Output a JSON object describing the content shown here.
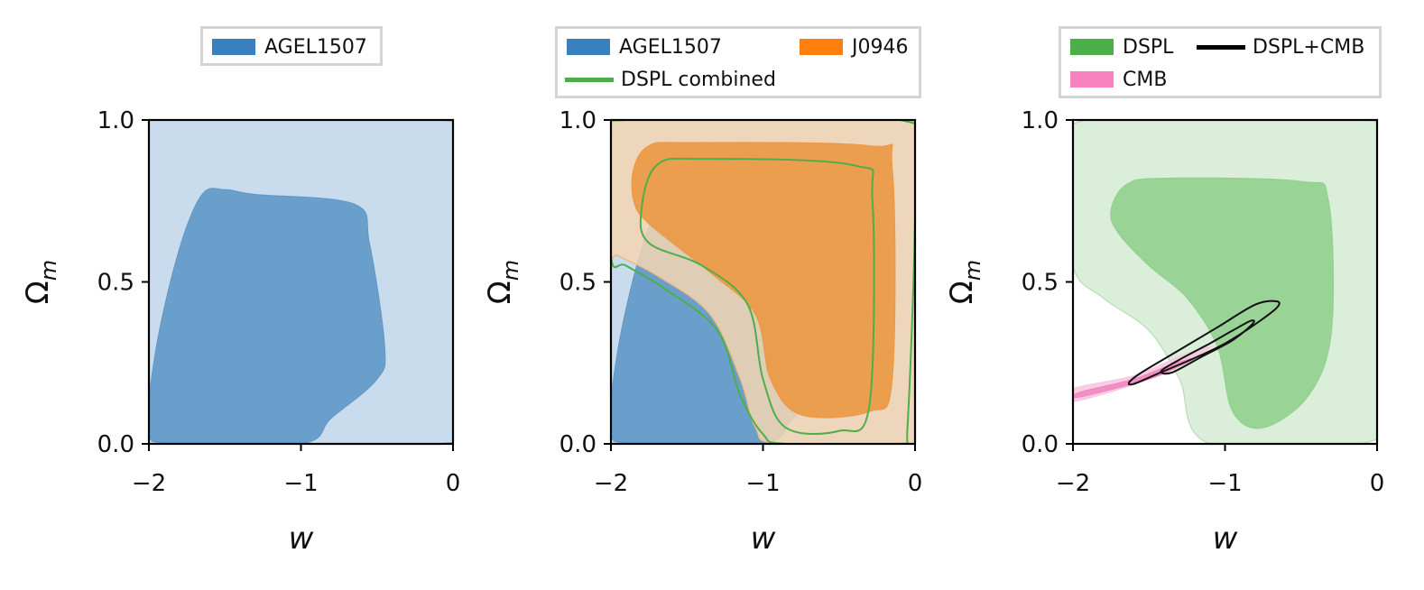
{
  "chart_data": [
    {
      "type": "contour",
      "title": "",
      "xlabel": "w",
      "ylabel": "Ω_m",
      "xlim": [
        -2,
        0
      ],
      "ylim": [
        0.0,
        1.0
      ],
      "x_ticks": [
        "−2",
        "−1",
        "0"
      ],
      "y_ticks": [
        "0.0",
        "0.5",
        "1.0"
      ],
      "legend": {
        "placement": "top-center",
        "entries": [
          {
            "label": "AGEL1507",
            "color": "#3a7fbe",
            "kind": "patch"
          }
        ]
      },
      "series": [
        {
          "name": "AGEL1507",
          "color": "#3a7fbe",
          "contours": [
            {
              "level": "outer",
              "fill": "#c0d6ea",
              "stroke": "#9dbcdc",
              "points": [
                [
                  -2.0,
                  0.05
                ],
                [
                  -2.0,
                  0.95
                ],
                [
                  -1.9,
                  1.0
                ],
                [
                  -0.1,
                  1.0
                ],
                [
                  0.0,
                  0.9
                ],
                [
                  0.0,
                  0.12
                ],
                [
                  -0.1,
                  0.0
                ],
                [
                  -1.85,
                  0.0
                ]
              ]
            },
            {
              "level": "inner",
              "fill": "#6299c8",
              "stroke": "#6299c8",
              "points": [
                [
                  -2.0,
                  0.05
                ],
                [
                  -1.95,
                  0.3
                ],
                [
                  -1.8,
                  0.6
                ],
                [
                  -1.65,
                  0.77
                ],
                [
                  -1.5,
                  0.785
                ],
                [
                  -1.3,
                  0.77
                ],
                [
                  -0.65,
                  0.74
                ],
                [
                  -0.55,
                  0.62
                ],
                [
                  -0.45,
                  0.3
                ],
                [
                  -0.5,
                  0.2
                ],
                [
                  -0.8,
                  0.08
                ],
                [
                  -1.0,
                  0.0
                ],
                [
                  -1.85,
                  0.0
                ]
              ]
            }
          ]
        }
      ]
    },
    {
      "type": "contour",
      "title": "",
      "xlabel": "w",
      "ylabel": "Ω_m",
      "xlim": [
        -2,
        0
      ],
      "ylim": [
        0.0,
        1.0
      ],
      "x_ticks": [
        "−2",
        "−1",
        "0"
      ],
      "y_ticks": [
        "0.0",
        "0.5",
        "1.0"
      ],
      "legend": {
        "placement": "top-center",
        "entries": [
          {
            "label": "AGEL1507",
            "color": "#3a7fbe",
            "kind": "patch"
          },
          {
            "label": "J0946",
            "color": "#ff7f0e",
            "kind": "patch"
          },
          {
            "label": "DSPL combined",
            "color": "#4daf4a",
            "kind": "line"
          }
        ]
      },
      "series": [
        {
          "name": "AGEL1507",
          "color": "#3a7fbe",
          "contours": [
            {
              "level": "outer",
              "fill": "#c0d6ea",
              "stroke": "#9dbcdc",
              "points": [
                [
                  -2.0,
                  0.05
                ],
                [
                  -2.0,
                  0.95
                ],
                [
                  -1.9,
                  1.0
                ],
                [
                  -0.1,
                  1.0
                ],
                [
                  0.0,
                  0.9
                ],
                [
                  0.0,
                  0.12
                ],
                [
                  -0.1,
                  0.0
                ],
                [
                  -1.85,
                  0.0
                ]
              ]
            },
            {
              "level": "inner",
              "fill": "#6299c8",
              "stroke": "#6299c8",
              "points": [
                [
                  -2.0,
                  0.05
                ],
                [
                  -1.95,
                  0.3
                ],
                [
                  -1.8,
                  0.6
                ],
                [
                  -1.65,
                  0.77
                ],
                [
                  -1.5,
                  0.785
                ],
                [
                  -1.3,
                  0.77
                ],
                [
                  -0.65,
                  0.74
                ],
                [
                  -0.55,
                  0.62
                ],
                [
                  -0.45,
                  0.3
                ],
                [
                  -0.5,
                  0.2
                ],
                [
                  -0.8,
                  0.08
                ],
                [
                  -1.0,
                  0.0
                ],
                [
                  -1.85,
                  0.0
                ]
              ]
            }
          ]
        },
        {
          "name": "J0946",
          "color": "#ff7f0e",
          "contours": [
            {
              "level": "outer",
              "fill": "#f5d5b3",
              "stroke": "#f0b47a",
              "points": [
                [
                  -2.0,
                  0.6
                ],
                [
                  -2.0,
                  0.95
                ],
                [
                  -1.9,
                  1.0
                ],
                [
                  -0.1,
                  1.0
                ],
                [
                  0.0,
                  0.95
                ],
                [
                  0.0,
                  0.05
                ],
                [
                  -0.05,
                  0.0
                ],
                [
                  -0.9,
                  0.0
                ],
                [
                  -1.05,
                  0.05
                ],
                [
                  -1.15,
                  0.2
                ],
                [
                  -1.35,
                  0.4
                ],
                [
                  -1.7,
                  0.52
                ],
                [
                  -1.95,
                  0.58
                ]
              ]
            },
            {
              "level": "inner",
              "fill": "#eb9945",
              "stroke": "#eb9945",
              "points": [
                [
                  -1.85,
                  0.85
                ],
                [
                  -1.75,
                  0.92
                ],
                [
                  -1.5,
                  0.93
                ],
                [
                  -0.3,
                  0.92
                ],
                [
                  -0.15,
                  0.85
                ],
                [
                  -0.15,
                  0.2
                ],
                [
                  -0.3,
                  0.1
                ],
                [
                  -0.75,
                  0.09
                ],
                [
                  -0.95,
                  0.2
                ],
                [
                  -1.05,
                  0.4
                ],
                [
                  -1.35,
                  0.53
                ],
                [
                  -1.75,
                  0.68
                ],
                [
                  -1.85,
                  0.75
                ]
              ]
            }
          ]
        },
        {
          "name": "DSPL combined",
          "color": "#4daf4a",
          "contours": [
            {
              "level": "outer",
              "fill": "none",
              "stroke": "#4daf4a",
              "points": [
                [
                  -2.0,
                  0.58
                ],
                [
                  -2.0,
                  0.95
                ],
                [
                  -1.9,
                  1.0
                ],
                [
                  -0.1,
                  1.0
                ],
                [
                  0.0,
                  0.82
                ],
                [
                  -0.05,
                  0.05
                ],
                [
                  -0.1,
                  0.0
                ],
                [
                  -0.85,
                  0.0
                ],
                [
                  -1.0,
                  0.03
                ],
                [
                  -1.15,
                  0.15
                ],
                [
                  -1.3,
                  0.35
                ],
                [
                  -1.65,
                  0.48
                ],
                [
                  -1.9,
                  0.55
                ]
              ]
            },
            {
              "level": "inner",
              "fill": "none",
              "stroke": "#4daf4a",
              "points": [
                [
                  -1.8,
                  0.72
                ],
                [
                  -1.7,
                  0.86
                ],
                [
                  -1.4,
                  0.88
                ],
                [
                  -0.4,
                  0.86
                ],
                [
                  -0.28,
                  0.75
                ],
                [
                  -0.3,
                  0.12
                ],
                [
                  -0.5,
                  0.04
                ],
                [
                  -0.85,
                  0.05
                ],
                [
                  -1.0,
                  0.2
                ],
                [
                  -1.1,
                  0.43
                ],
                [
                  -1.4,
                  0.55
                ],
                [
                  -1.75,
                  0.62
                ]
              ]
            }
          ]
        }
      ]
    },
    {
      "type": "contour",
      "title": "",
      "xlabel": "w",
      "ylabel": "Ω_m",
      "xlim": [
        -2,
        0
      ],
      "ylim": [
        0.0,
        1.0
      ],
      "x_ticks": [
        "−2",
        "−1",
        "0"
      ],
      "y_ticks": [
        "0.0",
        "0.5",
        "1.0"
      ],
      "legend": {
        "placement": "top-center",
        "entries": [
          {
            "label": "DSPL",
            "color": "#4daf4a",
            "kind": "patch"
          },
          {
            "label": "DSPL+CMB",
            "color": "#000000",
            "kind": "line"
          },
          {
            "label": "CMB",
            "color": "#f781bf",
            "kind": "patch"
          }
        ]
      },
      "series": [
        {
          "name": "DSPL",
          "color": "#4daf4a",
          "contours": [
            {
              "level": "outer",
              "fill": "#d4ebd3",
              "stroke": "#b7dcb5",
              "points": [
                [
                  -2.0,
                  0.55
                ],
                [
                  -2.0,
                  0.85
                ],
                [
                  -1.9,
                  1.0
                ],
                [
                  -0.1,
                  1.0
                ],
                [
                  0.0,
                  0.9
                ],
                [
                  0.0,
                  0.15
                ],
                [
                  -0.1,
                  0.0
                ],
                [
                  -1.1,
                  0.0
                ],
                [
                  -1.3,
                  0.2
                ],
                [
                  -1.5,
                  0.35
                ],
                [
                  -1.8,
                  0.45
                ]
              ]
            },
            {
              "level": "inner",
              "fill": "#94d08f",
              "stroke": "#94d08f",
              "points": [
                [
                  -1.75,
                  0.72
                ],
                [
                  -1.65,
                  0.8
                ],
                [
                  -1.4,
                  0.82
                ],
                [
                  -0.5,
                  0.81
                ],
                [
                  -0.32,
                  0.75
                ],
                [
                  -0.3,
                  0.35
                ],
                [
                  -0.45,
                  0.15
                ],
                [
                  -0.75,
                  0.05
                ],
                [
                  -0.95,
                  0.1
                ],
                [
                  -1.05,
                  0.3
                ],
                [
                  -1.25,
                  0.45
                ],
                [
                  -1.5,
                  0.55
                ],
                [
                  -1.7,
                  0.65
                ]
              ]
            }
          ]
        },
        {
          "name": "CMB",
          "color": "#f781bf",
          "contours": [
            {
              "level": "outer",
              "fill": "#f8c6e0",
              "stroke": "#f8c6e0",
              "points": [
                [
                  -2.0,
                  0.13
                ],
                [
                  -1.5,
                  0.2
                ],
                [
                  -1.2,
                  0.27
                ],
                [
                  -1.1,
                  0.3
                ],
                [
                  -1.3,
                  0.27
                ],
                [
                  -1.6,
                  0.21
                ],
                [
                  -2.0,
                  0.17
                ]
              ]
            },
            {
              "level": "inner",
              "fill": "#f089c0",
              "stroke": "#f089c0",
              "points": [
                [
                  -1.95,
                  0.145
                ],
                [
                  -1.5,
                  0.2
                ],
                [
                  -1.3,
                  0.24
                ],
                [
                  -1.2,
                  0.265
                ],
                [
                  -1.35,
                  0.245
                ],
                [
                  -1.6,
                  0.2
                ],
                [
                  -1.95,
                  0.16
                ]
              ]
            }
          ]
        },
        {
          "name": "DSPL+CMB",
          "color": "#000000",
          "contours": [
            {
              "level": "outer",
              "fill": "none",
              "stroke": "#111111",
              "points": [
                [
                  -1.63,
                  0.19
                ],
                [
                  -1.55,
                  0.22
                ],
                [
                  -1.3,
                  0.29
                ],
                [
                  -1.05,
                  0.36
                ],
                [
                  -0.8,
                  0.43
                ],
                [
                  -0.66,
                  0.44
                ],
                [
                  -0.66,
                  0.42
                ],
                [
                  -0.8,
                  0.37
                ],
                [
                  -1.0,
                  0.31
                ],
                [
                  -1.2,
                  0.265
                ],
                [
                  -1.45,
                  0.215
                ],
                [
                  -1.6,
                  0.185
                ]
              ]
            },
            {
              "level": "inner",
              "fill": "none",
              "stroke": "#111111",
              "points": [
                [
                  -1.42,
                  0.225
                ],
                [
                  -1.3,
                  0.26
                ],
                [
                  -1.1,
                  0.31
                ],
                [
                  -0.95,
                  0.35
                ],
                [
                  -0.83,
                  0.38
                ],
                [
                  -0.82,
                  0.37
                ],
                [
                  -0.95,
                  0.32
                ],
                [
                  -1.15,
                  0.27
                ],
                [
                  -1.35,
                  0.22
                ]
              ]
            }
          ]
        }
      ]
    }
  ]
}
